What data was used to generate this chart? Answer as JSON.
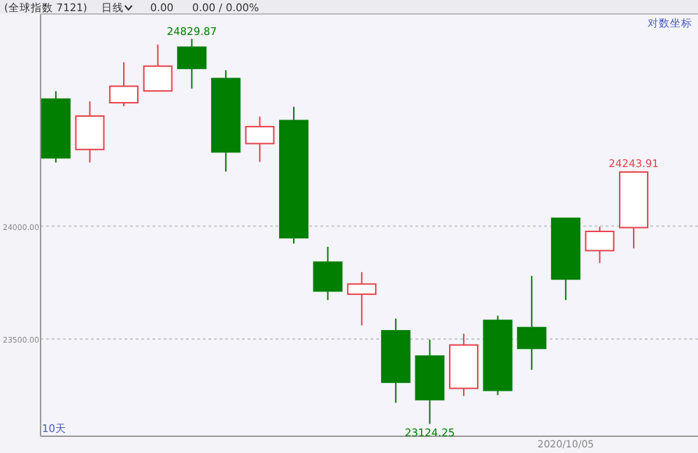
{
  "chart_data": {
    "type": "candlestick",
    "title": "(全球指数 7121)",
    "categories": [
      null,
      null,
      null,
      null,
      null,
      null,
      null,
      null,
      null,
      null,
      null,
      null,
      null,
      null,
      null,
      "2020/10/05",
      null,
      null
    ],
    "ohlc": [
      [
        24563,
        24598,
        24282,
        24303
      ],
      [
        24340,
        24553,
        24282,
        24488
      ],
      [
        24547,
        24726,
        24532,
        24620
      ],
      [
        24599,
        24805,
        24599,
        24709
      ],
      [
        24793,
        24829.87,
        24610,
        24699
      ],
      [
        24654,
        24691,
        24242,
        24329
      ],
      [
        24366,
        24486,
        24285,
        24441
      ],
      [
        24468,
        24529,
        23923,
        23949
      ],
      [
        23841,
        23909,
        23673,
        23713
      ],
      [
        23699,
        23797,
        23561,
        23744
      ],
      [
        23537,
        23591,
        23218,
        23309
      ],
      [
        23425,
        23498,
        23124.25,
        23232
      ],
      [
        23282,
        23524,
        23248,
        23474
      ],
      [
        23583,
        23604,
        23252,
        23273
      ],
      [
        23551,
        23780,
        23364,
        23459
      ],
      [
        24035,
        24035,
        23673,
        23766
      ],
      [
        23892,
        23998,
        23837,
        23977
      ],
      [
        23994,
        24243.91,
        23902,
        24240
      ]
    ],
    "colors": [
      "#007f00",
      "#e8414b",
      "#e8414b",
      "#e8414b",
      "#007f00",
      "#007f00",
      "#e8414b",
      "#007f00",
      "#007f00",
      "#e8414b",
      "#007f00",
      "#007f00",
      "#e8414b",
      "#007f00",
      "#007f00",
      "#007f00",
      "#e8414b",
      "#e8414b"
    ],
    "ylim": [
      23070,
      24940
    ],
    "yticks": [
      {
        "value": 23500,
        "label": "23500.00"
      },
      {
        "value": 24000,
        "label": "24000.00"
      }
    ],
    "grid": "y",
    "annotations": [
      {
        "text": "24829.87",
        "y": 24829.87
      },
      {
        "text": "23124.25",
        "y": 23124.25
      },
      {
        "text": "24243.91",
        "y": 24243.91
      },
      "日线",
      "0.00",
      "0.00 / 0.00%",
      "对数坐标",
      "10天"
    ]
  }
}
